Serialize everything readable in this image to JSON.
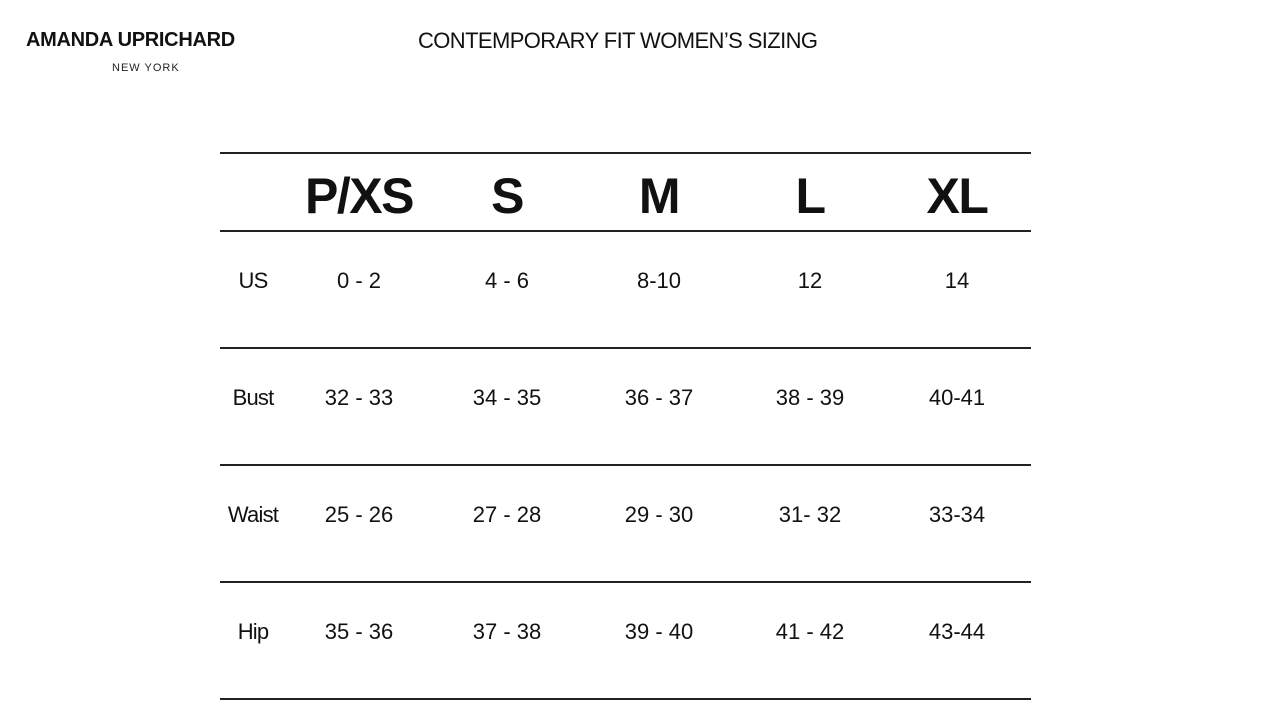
{
  "brand": {
    "name": "AMANDA UPRICHARD",
    "city": "NEW YORK"
  },
  "title": "CONTEMPORARY FIT WOMEN’S SIZING",
  "table": {
    "columns": [
      "P/XS",
      "S",
      "M",
      "L",
      "XL"
    ],
    "rows": [
      {
        "label": "US",
        "values": [
          "0 - 2",
          "4 - 6",
          "8-10",
          "12",
          "14"
        ]
      },
      {
        "label": "Bust",
        "values": [
          "32 - 33",
          "34 - 35",
          "36 - 37",
          "38 - 39",
          "40-41"
        ]
      },
      {
        "label": "Waist",
        "values": [
          "25 - 26",
          "27 - 28",
          "29 - 30",
          "31- 32",
          "33-34"
        ]
      },
      {
        "label": "Hip",
        "values": [
          "35 - 36",
          "37  - 38",
          "39 - 40",
          "41 - 42",
          "43-44"
        ]
      }
    ]
  }
}
